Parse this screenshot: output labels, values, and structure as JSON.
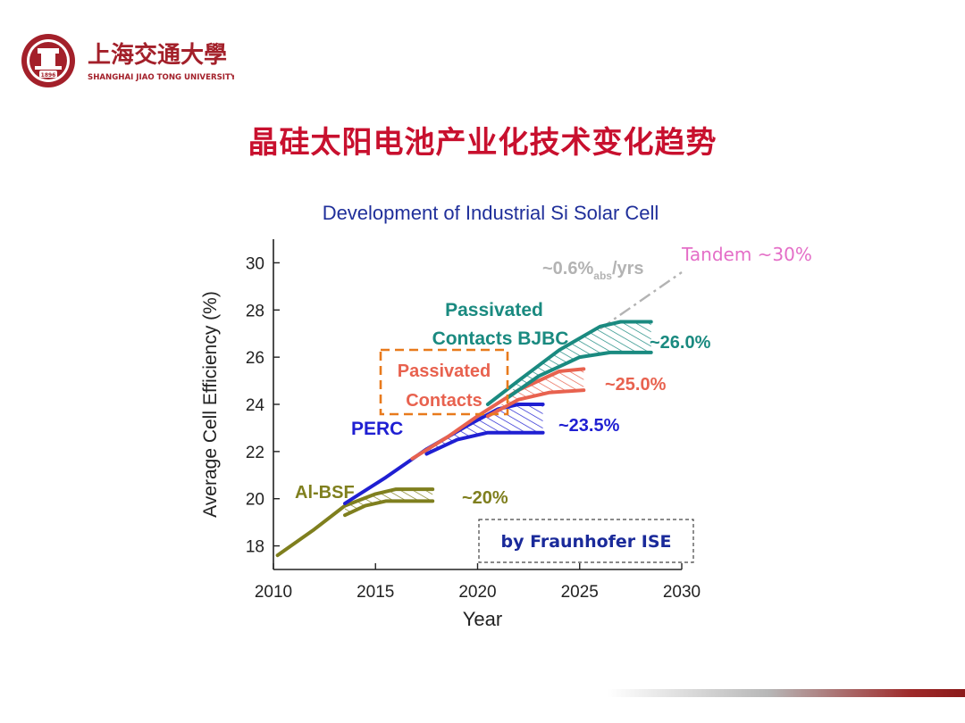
{
  "header": {
    "logo_cn": "上海交通大學",
    "logo_en": "SHANGHAI JIAO TONG UNIVERSITY",
    "logo_year": "1896",
    "brand_color": "#a3202a"
  },
  "slide_title": "晶硅太阳电池产业化技术变化趋势",
  "chart_data": {
    "type": "line",
    "title": "Development of Industrial Si Solar Cell",
    "xlabel": "Year",
    "ylabel": "Average Cell Efficiency (%)",
    "xlim": [
      2010,
      2030
    ],
    "ylim": [
      17,
      31
    ],
    "x_ticks": [
      2010,
      2015,
      2020,
      2025,
      2030
    ],
    "y_ticks": [
      18,
      20,
      22,
      24,
      26,
      28,
      30
    ],
    "grid": false,
    "series": [
      {
        "name": "Al-BSF",
        "color": "#7f7f1e",
        "upper": [
          [
            2010.2,
            17.6
          ],
          [
            2012,
            18.7
          ],
          [
            2013.5,
            19.7
          ],
          [
            2015,
            20.2
          ],
          [
            2016,
            20.4
          ],
          [
            2017.8,
            20.4
          ]
        ],
        "lower": [
          [
            2013.5,
            19.3
          ],
          [
            2014.5,
            19.7
          ],
          [
            2015.5,
            19.9
          ],
          [
            2017.8,
            19.9
          ]
        ],
        "label": "Al-BSF",
        "end_label": "~20%"
      },
      {
        "name": "PERC",
        "color": "#1f1fd2",
        "upper": [
          [
            2013.5,
            19.8
          ],
          [
            2015.5,
            20.9
          ],
          [
            2017.5,
            22.1
          ],
          [
            2019.5,
            23.1
          ],
          [
            2021,
            23.8
          ],
          [
            2022,
            24.0
          ],
          [
            2023.2,
            24.0
          ]
        ],
        "lower": [
          [
            2017.5,
            21.9
          ],
          [
            2019,
            22.5
          ],
          [
            2020.5,
            22.8
          ],
          [
            2023.2,
            22.8
          ]
        ],
        "label": "PERC",
        "end_label": "~23.5%"
      },
      {
        "name": "Passivated Contacts",
        "color": "#e8624f",
        "upper": [
          [
            2016.8,
            21.7
          ],
          [
            2018.5,
            22.6
          ],
          [
            2020,
            23.5
          ],
          [
            2022,
            24.6
          ],
          [
            2024,
            25.4
          ],
          [
            2025.2,
            25.5
          ]
        ],
        "lower": [
          [
            2020.5,
            23.5
          ],
          [
            2022,
            24.2
          ],
          [
            2023.5,
            24.5
          ],
          [
            2025.2,
            24.6
          ]
        ],
        "label": "Passivated Contacts",
        "end_label": "~25.0%"
      },
      {
        "name": "Passivated Contacts BJBC",
        "color": "#1a8a80",
        "upper": [
          [
            2020.5,
            24.0
          ],
          [
            2022,
            25.0
          ],
          [
            2024,
            26.3
          ],
          [
            2026,
            27.3
          ],
          [
            2027,
            27.5
          ],
          [
            2028.5,
            27.5
          ]
        ],
        "lower": [
          [
            2021.5,
            24.3
          ],
          [
            2023,
            25.2
          ],
          [
            2025,
            26.0
          ],
          [
            2026.5,
            26.2
          ],
          [
            2028.5,
            26.2
          ]
        ],
        "label": "Passivated Contacts BJBC",
        "end_label": "~26.0%"
      }
    ],
    "trend": {
      "label_prefix": "~0.6%",
      "label_sub": "abs",
      "label_suffix": "/yrs",
      "color": "#b3b3b3",
      "points": [
        [
          2026,
          27.2
        ],
        [
          2030,
          29.6
        ]
      ]
    },
    "tandem": {
      "label": "Tandem ~30%",
      "color": "#e46ec7"
    },
    "source_note": "by Fraunhofer ISE",
    "title_color": "#1f2f9a",
    "highlight_box_color": "#e87a1c"
  }
}
